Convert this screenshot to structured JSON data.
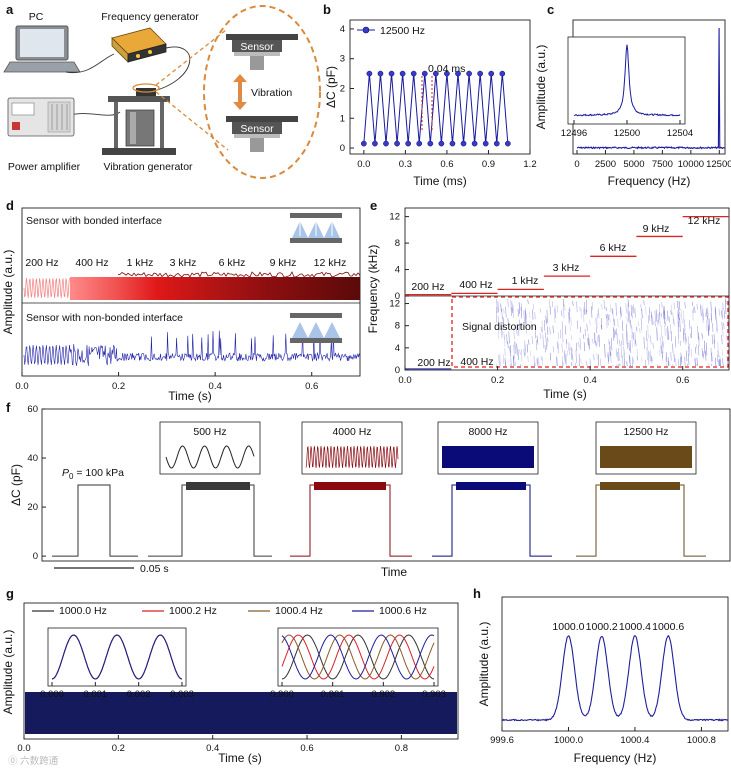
{
  "watermark": "⓪ 六数跨通",
  "a": {
    "label": "a",
    "pc": "PC",
    "freq_gen": "Frequency generator",
    "power_amp": "Power amplifier",
    "vib_gen": "Vibration generator",
    "sensor_top": "Sensor",
    "sensor_bottom": "Sensor",
    "vibration": "Vibration"
  },
  "b": {
    "label": "b",
    "annotation": "0.04 ms",
    "chart_data": {
      "type": "line",
      "xlabel": "Time (ms)",
      "ylabel": "ΔC (pF)",
      "xlim": [
        -0.1,
        1.2
      ],
      "ylim": [
        -0.2,
        4.3
      ],
      "xticks": [
        "0.0",
        "0.3",
        "0.6",
        "0.9",
        "1.2"
      ],
      "yticks": [
        "0",
        "1",
        "2",
        "3",
        "4"
      ],
      "series": [
        {
          "name": "12500 Hz",
          "period_ms": 0.08,
          "min": 0.15,
          "max": 2.5,
          "x_start": 0.0,
          "x_end": 1.04,
          "color": "#1a1aa0"
        }
      ]
    }
  },
  "c": {
    "label": "c",
    "chart_data": {
      "type": "line",
      "xlabel": "Frequency (Hz)",
      "ylabel": "Amplitude (a.u.)",
      "xlim": [
        0,
        13000
      ],
      "xticks": [
        "0",
        "2500",
        "5000",
        "7500",
        "10000",
        "12500"
      ],
      "peak_hz": 12500,
      "inset": {
        "xticks": [
          "12496",
          "12500",
          "12504"
        ],
        "xlim": [
          12496,
          12504
        ],
        "peak_hz": 12500
      },
      "color": "#1a1aa0"
    }
  },
  "d": {
    "label": "d",
    "bonded_title": "Sensor with bonded interface",
    "nonbonded_title": "Sensor with non-bonded interface",
    "frequency_labels": [
      "200 Hz",
      "400 Hz",
      "1 kHz",
      "3 kHz",
      "6 kHz",
      "9 kHz",
      "12 kHz"
    ],
    "chart_data": {
      "type": "line",
      "xlabel": "Time (s)",
      "ylabel": "Amplitude (a.u.)",
      "xlim": [
        0,
        0.7
      ],
      "xticks": [
        "0.0",
        "0.2",
        "0.4",
        "0.6"
      ],
      "segment_boundaries_s": [
        0,
        0.1,
        0.2,
        0.3,
        0.4,
        0.5,
        0.6,
        0.7
      ],
      "colors": {
        "bonded": "#c0141e",
        "nonbonded": "#1f1fa8"
      }
    }
  },
  "e": {
    "label": "e",
    "distortion_label": "Signal distortion",
    "chart_data": {
      "type": "heatmap",
      "xlabel": "Time (s)",
      "ylabel": "Frequency (kHz)",
      "xlim": [
        0,
        0.7
      ],
      "xticks": [
        "0.0",
        "0.2",
        "0.4",
        "0.6"
      ],
      "yticks_top": [
        "0",
        "4",
        "8",
        "12"
      ],
      "yticks_bottom": [
        "0",
        "4",
        "8",
        "12"
      ],
      "steps": [
        {
          "label": "200 Hz",
          "t0": 0.0,
          "t1": 0.1,
          "f_khz": 0.2
        },
        {
          "label": "400 Hz",
          "t0": 0.1,
          "t1": 0.2,
          "f_khz": 0.4
        },
        {
          "label": "1 kHz",
          "t0": 0.2,
          "t1": 0.3,
          "f_khz": 1
        },
        {
          "label": "3 kHz",
          "t0": 0.3,
          "t1": 0.4,
          "f_khz": 3
        },
        {
          "label": "6 kHz",
          "t0": 0.4,
          "t1": 0.5,
          "f_khz": 6
        },
        {
          "label": "9 kHz",
          "t0": 0.5,
          "t1": 0.6,
          "f_khz": 9
        },
        {
          "label": "12 kHz",
          "t0": 0.6,
          "t1": 0.7,
          "f_khz": 12
        }
      ],
      "bottom_labels": [
        "200 Hz",
        "400 Hz"
      ]
    }
  },
  "f": {
    "label": "f",
    "pressure_text": " = 100 kPa",
    "scalebar": "0.05 s",
    "chart_data": {
      "type": "line",
      "xlabel": "Time",
      "ylabel": "ΔC (pF)",
      "ylim": [
        -2,
        60
      ],
      "yticks": [
        "0",
        "20",
        "40",
        "60"
      ],
      "baseline": 0,
      "plateau": 29,
      "pulses": [
        {
          "label": "",
          "color": "#333333"
        },
        {
          "label": "500 Hz",
          "color": "#3a3a3a"
        },
        {
          "label": "4000 Hz",
          "color": "#8b0a10"
        },
        {
          "label": "8000 Hz",
          "color": "#0a0a78"
        },
        {
          "label": "12500 Hz",
          "color": "#6b4a1a"
        }
      ]
    }
  },
  "g": {
    "label": "g",
    "chart_data": {
      "type": "line",
      "xlabel": "Time (s)",
      "ylabel": "Amplitude (a.u.)",
      "xlim": [
        0,
        0.92
      ],
      "xticks": [
        "0.0",
        "0.2",
        "0.4",
        "0.6",
        "0.8"
      ],
      "series": [
        {
          "name": "1000.0 Hz",
          "color": "#333333",
          "freq": 1000.0
        },
        {
          "name": "1000.2 Hz",
          "color": "#d8222a",
          "freq": 1000.2
        },
        {
          "name": "1000.4 Hz",
          "color": "#8b5a2b",
          "freq": 1000.4
        },
        {
          "name": "1000.6 Hz",
          "color": "#1f1f9a",
          "freq": 1000.6
        }
      ],
      "inset_left": {
        "xlim": [
          0.0,
          0.003
        ],
        "xticks": [
          "0.000",
          "0.001",
          "0.002",
          "0.003"
        ]
      },
      "inset_right": {
        "xlim": [
          0.9,
          0.903
        ],
        "xticks": [
          "0.900",
          "0.901",
          "0.902",
          "0.903"
        ]
      }
    }
  },
  "h": {
    "label": "h",
    "chart_data": {
      "type": "line",
      "xlabel": "Frequency (Hz)",
      "ylabel": "Amplitude (a.u.)",
      "xlim": [
        999.6,
        1000.96
      ],
      "xticks": [
        "999.6",
        "1000.0",
        "1000.4",
        "1000.8"
      ],
      "peaks": [
        1000.0,
        1000.2,
        1000.4,
        1000.6
      ],
      "peak_labels": [
        "1000.0",
        "1000.2",
        "1000.4",
        "1000.6"
      ],
      "color": "#1f1f9a"
    }
  }
}
